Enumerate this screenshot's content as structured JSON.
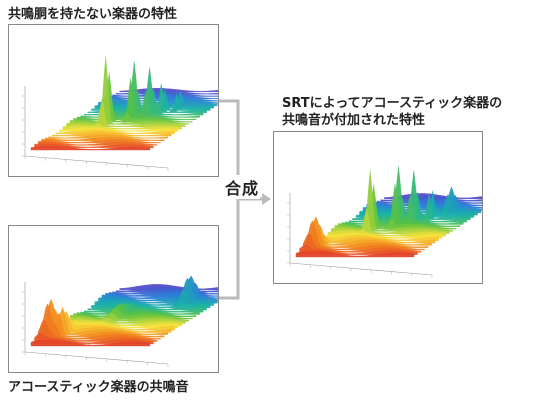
{
  "labels": {
    "top_title": "共鳴胴を持たない楽器の特性",
    "bottom_title": "アコースティック楽器の共鳴音",
    "result_title_line1": "SRTによってアコースティック楽器の",
    "result_title_line2": "共鳴音が付加された特性",
    "combine": "合成"
  },
  "colors": {
    "border": "#888888",
    "connector": "#bbbbbb",
    "spectrum": [
      "#e23b2a",
      "#f28a1e",
      "#f7e23a",
      "#5cc23f",
      "#19b2a6",
      "#2a7fd8",
      "#5a46c8"
    ]
  },
  "icons": {
    "arrow": "arrow-right-icon"
  }
}
